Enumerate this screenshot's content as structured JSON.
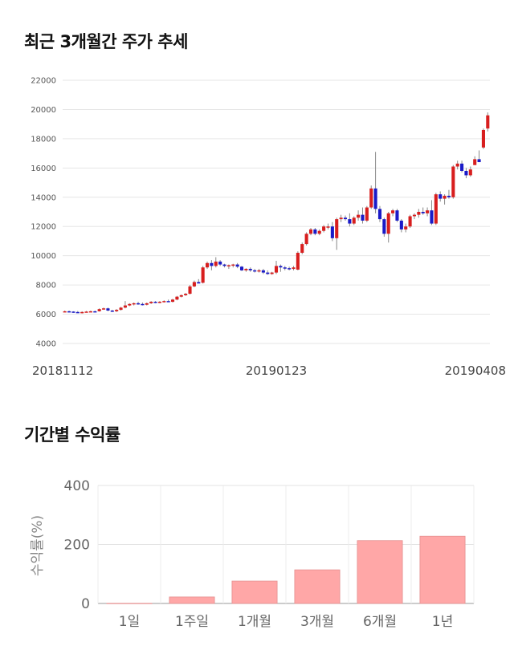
{
  "price_chart": {
    "heading": "최근 3개월간 주가 추세",
    "chart_data": {
      "type": "candlestick",
      "title": "",
      "y_ticks": [
        4000,
        6000,
        8000,
        10000,
        12000,
        14000,
        16000,
        18000,
        20000,
        22000
      ],
      "ylim": [
        4000,
        22000
      ],
      "x_labels": [
        "20181112",
        "20190123",
        "20190408"
      ],
      "x_label_index": [
        0,
        49,
        99
      ],
      "grid": true,
      "up_color": "#d81e1e",
      "down_color": "#1a1ac8",
      "candles": [
        [
          6200,
          6250,
          6150,
          6200
        ],
        [
          6200,
          6250,
          6150,
          6180
        ],
        [
          6180,
          6200,
          6100,
          6150
        ],
        [
          6150,
          6220,
          6100,
          6080
        ],
        [
          6100,
          6200,
          6050,
          6150
        ],
        [
          6150,
          6220,
          6120,
          6180
        ],
        [
          6180,
          6250,
          6150,
          6200
        ],
        [
          6200,
          6250,
          6150,
          6180
        ],
        [
          6200,
          6400,
          6180,
          6350
        ],
        [
          6350,
          6450,
          6300,
          6400
        ],
        [
          6400,
          6450,
          6200,
          6250
        ],
        [
          6250,
          6300,
          6150,
          6200
        ],
        [
          6200,
          6350,
          6150,
          6300
        ],
        [
          6300,
          6500,
          6250,
          6450
        ],
        [
          6450,
          6900,
          6400,
          6600
        ],
        [
          6600,
          6750,
          6550,
          6700
        ],
        [
          6700,
          6800,
          6600,
          6750
        ],
        [
          6750,
          6850,
          6650,
          6700
        ],
        [
          6700,
          6800,
          6600,
          6650
        ],
        [
          6650,
          6800,
          6600,
          6750
        ],
        [
          6750,
          6900,
          6700,
          6850
        ],
        [
          6850,
          6900,
          6750,
          6800
        ],
        [
          6800,
          6900,
          6750,
          6850
        ],
        [
          6850,
          6950,
          6800,
          6900
        ],
        [
          6900,
          7000,
          6850,
          6850
        ],
        [
          6850,
          7050,
          6800,
          7000
        ],
        [
          7000,
          7250,
          6950,
          7200
        ],
        [
          7200,
          7350,
          7150,
          7300
        ],
        [
          7300,
          7450,
          7250,
          7400
        ],
        [
          7400,
          8000,
          7350,
          7900
        ],
        [
          7900,
          8300,
          7850,
          8200
        ],
        [
          8200,
          8400,
          8150,
          8100
        ],
        [
          8150,
          9300,
          8100,
          9200
        ],
        [
          9200,
          9600,
          9100,
          9500
        ],
        [
          9500,
          9700,
          9000,
          9300
        ],
        [
          9300,
          9900,
          9200,
          9600
        ],
        [
          9600,
          9700,
          9300,
          9400
        ],
        [
          9400,
          9450,
          9200,
          9300
        ],
        [
          9300,
          9400,
          9100,
          9350
        ],
        [
          9350,
          9450,
          9200,
          9400
        ],
        [
          9400,
          9500,
          9150,
          9250
        ],
        [
          9250,
          9300,
          8950,
          9000
        ],
        [
          9000,
          9150,
          8900,
          9100
        ],
        [
          9100,
          9200,
          8900,
          9000
        ],
        [
          9000,
          9100,
          8850,
          8950
        ],
        [
          8950,
          9100,
          8850,
          9000
        ],
        [
          9000,
          9100,
          8750,
          8850
        ],
        [
          8850,
          9000,
          8700,
          8750
        ],
        [
          8750,
          8900,
          8700,
          8850
        ],
        [
          8850,
          9650,
          8750,
          9300
        ],
        [
          9300,
          9400,
          8900,
          9200
        ],
        [
          9200,
          9300,
          9000,
          9150
        ],
        [
          9150,
          9250,
          9000,
          9100
        ],
        [
          9100,
          9300,
          9000,
          9200
        ],
        [
          9050,
          10300,
          9000,
          10200
        ],
        [
          10200,
          10900,
          10100,
          10800
        ],
        [
          10800,
          11600,
          10700,
          11500
        ],
        [
          11500,
          11900,
          11400,
          11800
        ],
        [
          11800,
          11900,
          11400,
          11500
        ],
        [
          11500,
          11800,
          11400,
          11700
        ],
        [
          11700,
          12100,
          11600,
          12000
        ],
        [
          12000,
          12200,
          11800,
          12000
        ],
        [
          12000,
          12300,
          11000,
          11200
        ],
        [
          11200,
          12600,
          10400,
          12500
        ],
        [
          12500,
          12800,
          12300,
          12600
        ],
        [
          12600,
          12750,
          12400,
          12500
        ],
        [
          12500,
          12900,
          12000,
          12200
        ],
        [
          12200,
          12700,
          12100,
          12600
        ],
        [
          12600,
          13100,
          12400,
          12800
        ],
        [
          12800,
          13300,
          12200,
          12400
        ],
        [
          12400,
          13400,
          12300,
          13300
        ],
        [
          13300,
          14800,
          13200,
          14600
        ],
        [
          14600,
          17100,
          12900,
          13200
        ],
        [
          13200,
          13400,
          12300,
          12500
        ],
        [
          12500,
          12600,
          11300,
          11500
        ],
        [
          11500,
          13000,
          10900,
          12900
        ],
        [
          12900,
          13200,
          12700,
          13100
        ],
        [
          13100,
          13200,
          12300,
          12400
        ],
        [
          12400,
          12500,
          11600,
          11800
        ],
        [
          11800,
          12200,
          11600,
          12000
        ],
        [
          12000,
          12800,
          11900,
          12700
        ],
        [
          12700,
          12900,
          12500,
          12800
        ],
        [
          12800,
          13200,
          12600,
          13000
        ],
        [
          13000,
          13300,
          12800,
          12900
        ],
        [
          12900,
          13300,
          12700,
          13100
        ],
        [
          13100,
          13800,
          12100,
          12200
        ],
        [
          12200,
          14300,
          12100,
          14200
        ],
        [
          14200,
          14400,
          13700,
          13900
        ],
        [
          13900,
          14200,
          13500,
          14100
        ],
        [
          14100,
          14500,
          13900,
          14000
        ],
        [
          14000,
          16200,
          13900,
          16100
        ],
        [
          16100,
          16500,
          15900,
          16300
        ],
        [
          16300,
          16500,
          15700,
          15800
        ],
        [
          15800,
          16000,
          15300,
          15500
        ],
        [
          15500,
          16100,
          15400,
          15900
        ],
        [
          16200,
          16800,
          16200,
          16600
        ],
        [
          16600,
          17200,
          16400,
          16400
        ],
        [
          17400,
          18700,
          17300,
          18600
        ],
        [
          18700,
          19800,
          18500,
          19600
        ]
      ]
    }
  },
  "returns_chart": {
    "heading": "기간별 수익률",
    "chart_data": {
      "type": "bar",
      "title": "",
      "ylabel": "수익률(%)",
      "categories": [
        "1일",
        "1주일",
        "1개월",
        "3개월",
        "6개월",
        "1년"
      ],
      "values": [
        0.5,
        22,
        76,
        114,
        213,
        228
      ],
      "ylim": [
        0,
        400
      ],
      "y_ticks": [
        0,
        200,
        400
      ],
      "grid": true,
      "bar_color": "#ffa7a7",
      "bar_stroke": "#e58f8f"
    }
  }
}
